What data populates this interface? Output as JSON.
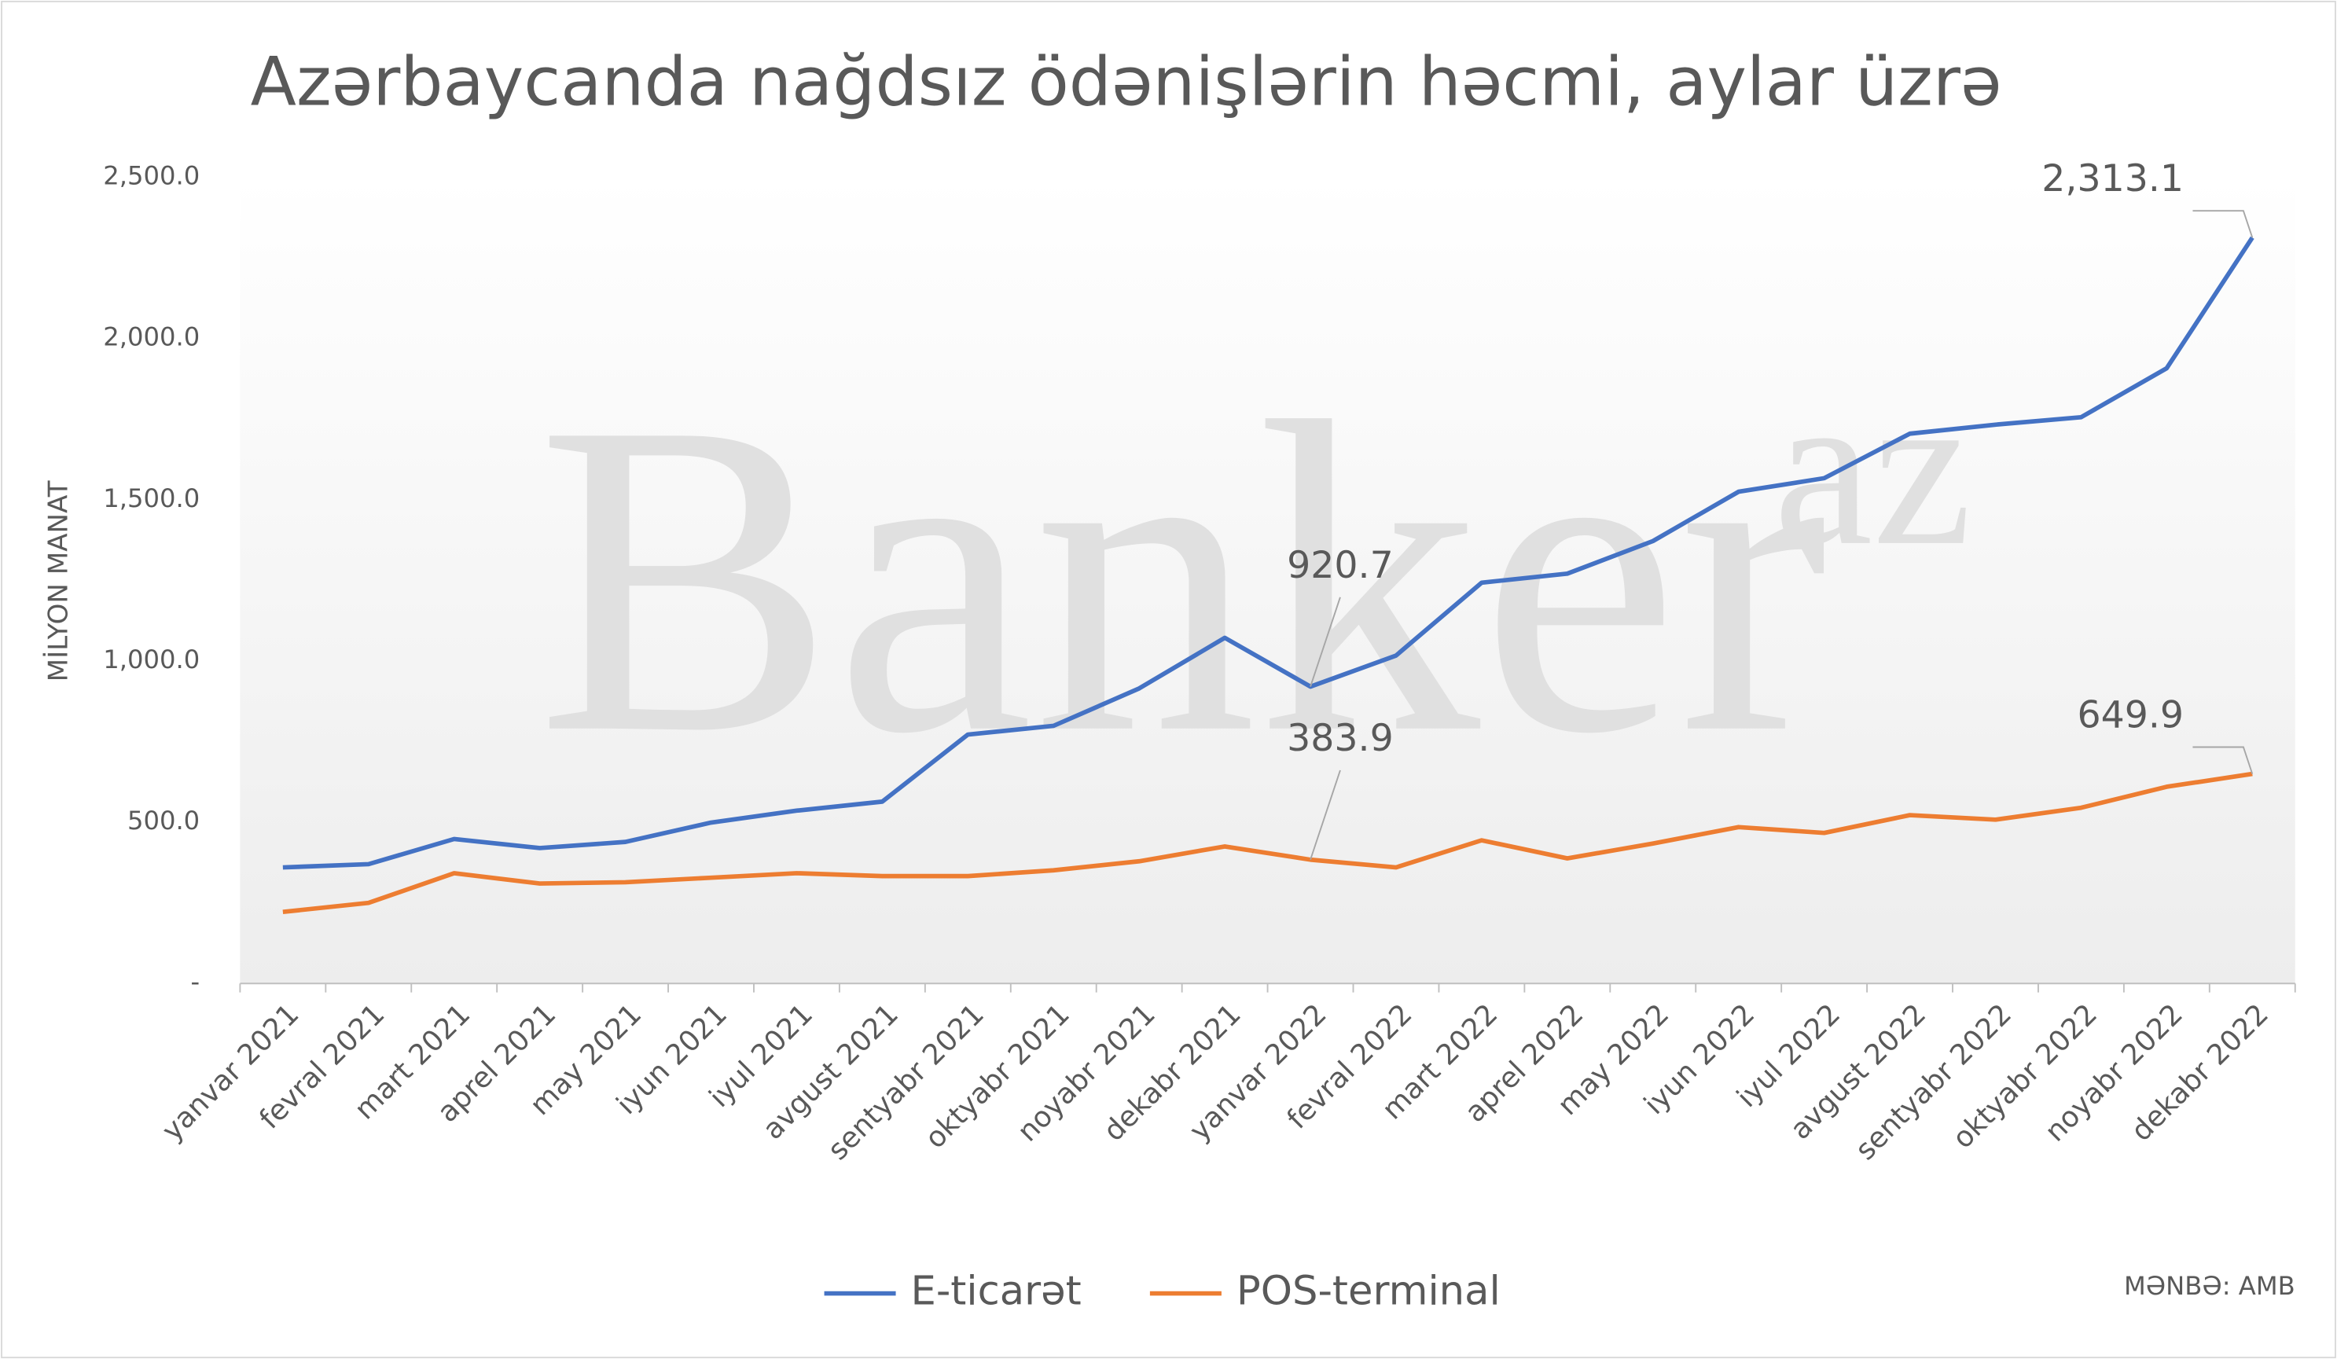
{
  "chart_data": {
    "type": "line",
    "title": "Azərbaycanda nağdsız ödənişlərin həcmi, aylar üzrə",
    "y_label": "MİLYON MANAT",
    "source": "MƏNBƏ: AMB",
    "watermark": [
      "Banker",
      "az"
    ],
    "categories": [
      "yanvar 2021",
      "fevral 2021",
      "mart 2021",
      "aprel 2021",
      "may 2021",
      "iyun 2021",
      "iyul 2021",
      "avgust 2021",
      "sentyabr 2021",
      "oktyabr 2021",
      "noyabr 2021",
      "dekabr 2021",
      "yanvar 2022",
      "fevral 2022",
      "mart 2022",
      "aprel 2022",
      "may 2022",
      "iyun 2022",
      "iyul 2022",
      "avgust 2022",
      "sentyabr 2022",
      "oktyabr 2022",
      "noyabr 2022",
      "dekabr 2022"
    ],
    "series": [
      {
        "name": "E-ticarət",
        "color": "#4472c4",
        "values": [
          360,
          370,
          448,
          420,
          439,
          499,
          536,
          564,
          772,
          799,
          915,
          1072,
          920.7,
          1017,
          1243,
          1271,
          1372,
          1525,
          1567,
          1705,
          1733,
          1756,
          1908,
          2313.1
        ],
        "value_labels": [
          null,
          null,
          null,
          null,
          null,
          null,
          null,
          null,
          null,
          null,
          null,
          null,
          "920.7",
          null,
          null,
          null,
          null,
          null,
          null,
          null,
          null,
          null,
          null,
          "2,313.1"
        ]
      },
      {
        "name": "POS-terminal",
        "color": "#ed7d31",
        "values": [
          222,
          250,
          342,
          310,
          314,
          328,
          342,
          333,
          333,
          351,
          379,
          425,
          383.9,
          360,
          444,
          388,
          434,
          485,
          467,
          522,
          508,
          545,
          610,
          649.9
        ],
        "value_labels": [
          null,
          null,
          null,
          null,
          null,
          null,
          null,
          null,
          null,
          null,
          null,
          null,
          "383.9",
          null,
          null,
          null,
          null,
          null,
          null,
          null,
          null,
          null,
          null,
          "649.9"
        ]
      }
    ],
    "ylim": [
      0,
      2500
    ],
    "yticks": [
      {
        "value": 0,
        "label": "-"
      },
      {
        "value": 500,
        "label": "500.0"
      },
      {
        "value": 1000,
        "label": "1,000.0"
      },
      {
        "value": 1500,
        "label": "1,500.0"
      },
      {
        "value": 2000,
        "label": "2,000.0"
      },
      {
        "value": 2500,
        "label": "2,500.0"
      }
    ],
    "grid": false,
    "legend": "bottom"
  }
}
